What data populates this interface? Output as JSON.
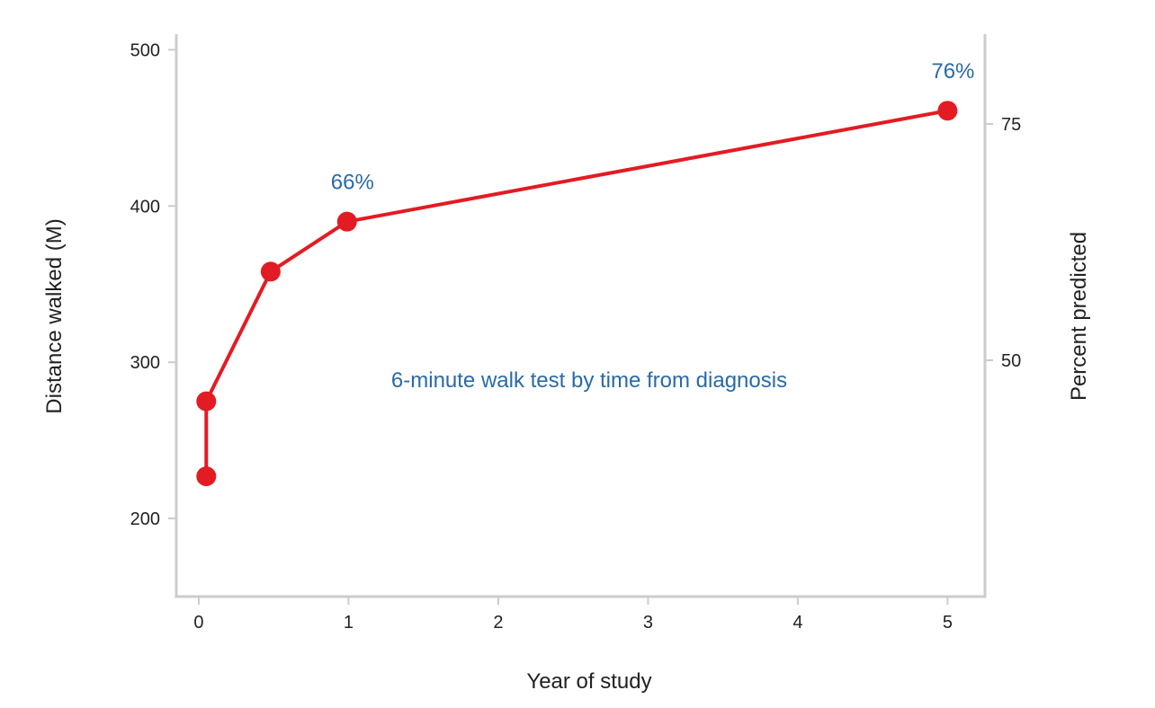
{
  "chart_data": {
    "type": "line",
    "title": "6-minute walk test by time from diagnosis",
    "xlabel": "Year of study",
    "ylabel": "Distance walked (M)",
    "y2label": "Percent predicted",
    "xlim": [
      -0.15,
      5.25
    ],
    "ylim": [
      150,
      510
    ],
    "y2lim": [
      25,
      84.5
    ],
    "x_ticks": [
      0,
      1,
      2,
      3,
      4,
      5
    ],
    "y_ticks": [
      200,
      300,
      400,
      500
    ],
    "y2_ticks": [
      50,
      75
    ],
    "grid": false,
    "series": [
      {
        "x": [
          0.05,
          0.05,
          0.48,
          0.99,
          5.0
        ],
        "y": [
          227,
          275,
          358,
          390,
          461
        ]
      }
    ],
    "annotations": [
      {
        "text": "66%",
        "x": 0.99,
        "y": 390
      },
      {
        "text": "76%",
        "x": 5.0,
        "y": 461
      }
    ],
    "colors": {
      "line": "#e31b23",
      "annotation": "#2a6aa8",
      "axis": "#cccccc",
      "text": "#222222"
    }
  }
}
